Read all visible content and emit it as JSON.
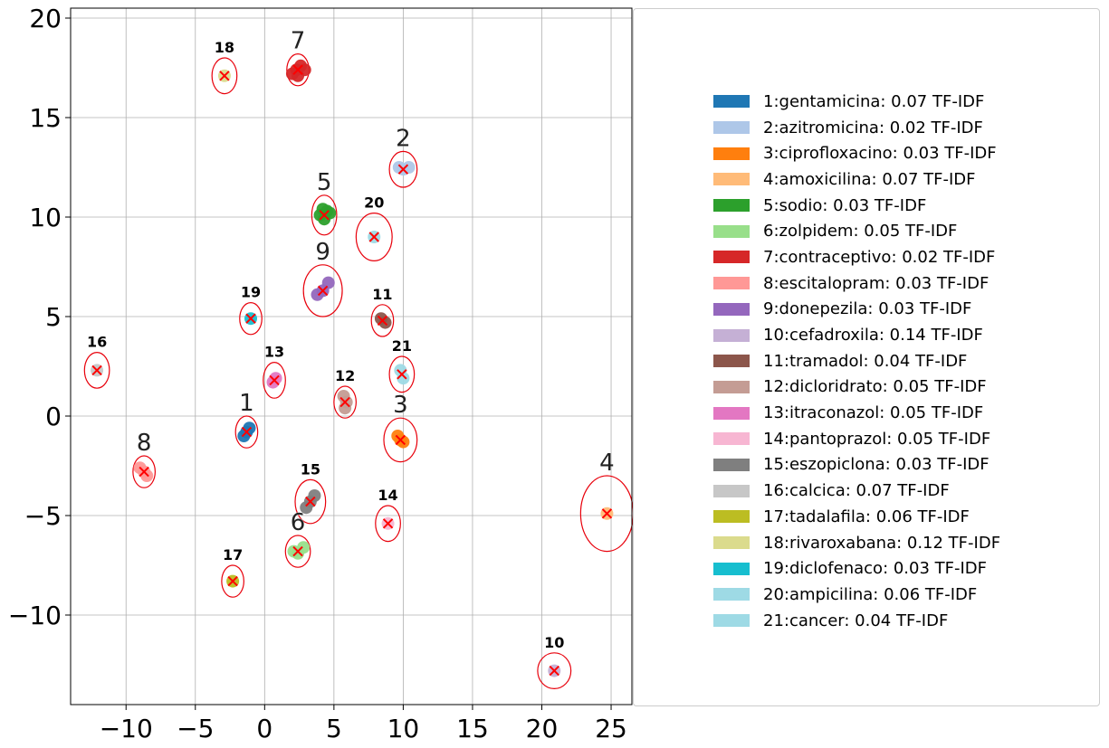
{
  "chart_data": {
    "type": "scatter",
    "xlim": [
      -14,
      26.5
    ],
    "ylim": [
      -14.5,
      20.5
    ],
    "xticks": [
      -10,
      -5,
      0,
      5,
      10,
      15,
      20,
      25
    ],
    "yticks": [
      -10,
      -5,
      0,
      5,
      10,
      15,
      20
    ],
    "xtick_labels": [
      "−10",
      "−5",
      "0",
      "5",
      "10",
      "15",
      "20",
      "25"
    ],
    "ytick_labels": [
      "−10",
      "−5",
      "0",
      "5",
      "10",
      "15",
      "20"
    ],
    "grid": true,
    "legend_placement": "right",
    "legend": [
      {
        "label": "1:gentamicina: 0.07 TF-IDF",
        "color": "#1f77b4"
      },
      {
        "label": "2:azitromicina: 0.02 TF-IDF",
        "color": "#aec7e8"
      },
      {
        "label": "3:ciprofloxacino: 0.03 TF-IDF",
        "color": "#ff7f0e"
      },
      {
        "label": "4:amoxicilina: 0.07 TF-IDF",
        "color": "#ffbb78"
      },
      {
        "label": "5:sodio: 0.03 TF-IDF",
        "color": "#2ca02c"
      },
      {
        "label": "6:zolpidem: 0.05 TF-IDF",
        "color": "#98df8a"
      },
      {
        "label": "7:contraceptivo: 0.02 TF-IDF",
        "color": "#d62728"
      },
      {
        "label": "8:escitalopram: 0.03 TF-IDF",
        "color": "#ff9896"
      },
      {
        "label": "9:donepezila: 0.03 TF-IDF",
        "color": "#9467bd"
      },
      {
        "label": "10:cefadroxila: 0.14 TF-IDF",
        "color": "#c5b0d5"
      },
      {
        "label": "11:tramadol: 0.04 TF-IDF",
        "color": "#8c564b"
      },
      {
        "label": "12:dicloridrato: 0.05 TF-IDF",
        "color": "#c49c94"
      },
      {
        "label": "13:itraconazol: 0.05 TF-IDF",
        "color": "#e377c2"
      },
      {
        "label": "14:pantoprazol: 0.05 TF-IDF",
        "color": "#f7b6d2"
      },
      {
        "label": "15:eszopiclona: 0.03 TF-IDF",
        "color": "#7f7f7f"
      },
      {
        "label": "16:calcica: 0.07 TF-IDF",
        "color": "#c7c7c7"
      },
      {
        "label": "17:tadalafila: 0.06 TF-IDF",
        "color": "#bcbd22"
      },
      {
        "label": "18:rivaroxabana: 0.12 TF-IDF",
        "color": "#dbdb8d"
      },
      {
        "label": "19:diclofenaco: 0.03 TF-IDF",
        "color": "#17becf"
      },
      {
        "label": "20:ampicilina: 0.06 TF-IDF",
        "color": "#9edae5"
      },
      {
        "label": "21:cancer: 0.04 TF-IDF",
        "color": "#9edae5"
      }
    ],
    "clusters": [
      {
        "label": "1",
        "big": true,
        "color": "#1f77b4",
        "center": [
          -1.3,
          -0.8
        ],
        "rx": 0.8,
        "ry": 0.8,
        "points": [
          [
            -1.5,
            -1.0
          ],
          [
            -1.3,
            -0.8
          ],
          [
            -1.1,
            -0.6
          ]
        ]
      },
      {
        "label": "2",
        "big": true,
        "color": "#aec7e8",
        "center": [
          10.0,
          12.4
        ],
        "rx": 1.0,
        "ry": 0.9,
        "points": [
          [
            9.7,
            12.5
          ],
          [
            10.0,
            12.4
          ],
          [
            10.4,
            12.5
          ]
        ]
      },
      {
        "label": "3",
        "big": true,
        "color": "#ff7f0e",
        "center": [
          9.8,
          -1.2
        ],
        "rx": 1.2,
        "ry": 1.1,
        "points": [
          [
            9.6,
            -1.0
          ],
          [
            9.8,
            -1.2
          ],
          [
            10.0,
            -1.3
          ]
        ]
      },
      {
        "label": "4",
        "big": true,
        "color": "#ffbb78",
        "center": [
          24.7,
          -4.9
        ],
        "rx": 1.9,
        "ry": 1.9,
        "points": [
          [
            24.7,
            -4.9
          ]
        ]
      },
      {
        "label": "5",
        "big": true,
        "color": "#2ca02c",
        "center": [
          4.3,
          10.1
        ],
        "rx": 0.9,
        "ry": 1.0,
        "points": [
          [
            4.0,
            10.1
          ],
          [
            4.3,
            9.9
          ],
          [
            4.5,
            10.3
          ],
          [
            4.7,
            10.2
          ],
          [
            4.2,
            10.4
          ]
        ]
      },
      {
        "label": "6",
        "big": true,
        "color": "#98df8a",
        "center": [
          2.4,
          -6.8
        ],
        "rx": 0.9,
        "ry": 0.8,
        "points": [
          [
            2.1,
            -6.8
          ],
          [
            2.4,
            -6.9
          ],
          [
            2.8,
            -6.6
          ]
        ]
      },
      {
        "label": "7",
        "big": true,
        "color": "#d62728",
        "center": [
          2.4,
          17.4
        ],
        "rx": 0.8,
        "ry": 0.8,
        "points": [
          [
            2.0,
            17.2
          ],
          [
            2.3,
            17.4
          ],
          [
            2.6,
            17.6
          ],
          [
            2.9,
            17.4
          ],
          [
            2.4,
            17.1
          ]
        ]
      },
      {
        "label": "8",
        "big": true,
        "color": "#ff9896",
        "center": [
          -8.7,
          -2.8
        ],
        "rx": 0.8,
        "ry": 0.8,
        "points": [
          [
            -9.0,
            -2.6
          ],
          [
            -8.7,
            -2.8
          ],
          [
            -8.5,
            -3.0
          ]
        ]
      },
      {
        "label": "9",
        "big": true,
        "color": "#9467bd",
        "center": [
          4.2,
          6.3
        ],
        "rx": 1.4,
        "ry": 1.3,
        "points": [
          [
            3.8,
            6.1
          ],
          [
            4.2,
            6.3
          ],
          [
            4.6,
            6.7
          ]
        ]
      },
      {
        "label": "10",
        "big": false,
        "color": "#c5b0d5",
        "center": [
          20.9,
          -12.8
        ],
        "rx": 1.2,
        "ry": 0.9,
        "points": [
          [
            20.9,
            -12.8
          ]
        ]
      },
      {
        "label": "11",
        "big": false,
        "color": "#8c564b",
        "center": [
          8.5,
          4.8
        ],
        "rx": 0.8,
        "ry": 0.8,
        "points": [
          [
            8.4,
            4.9
          ],
          [
            8.7,
            4.7
          ]
        ]
      },
      {
        "label": "12",
        "big": false,
        "color": "#c49c94",
        "center": [
          5.8,
          0.7
        ],
        "rx": 0.8,
        "ry": 0.8,
        "points": [
          [
            5.7,
            1.0
          ],
          [
            5.9,
            0.7
          ],
          [
            5.8,
            0.4
          ]
        ]
      },
      {
        "label": "13",
        "big": false,
        "color": "#e377c2",
        "center": [
          0.7,
          1.8
        ],
        "rx": 0.8,
        "ry": 0.9,
        "points": [
          [
            0.6,
            1.7
          ],
          [
            0.8,
            1.9
          ]
        ]
      },
      {
        "label": "14",
        "big": false,
        "color": "#f7b6d2",
        "center": [
          8.9,
          -5.4
        ],
        "rx": 0.9,
        "ry": 0.9,
        "points": [
          [
            8.9,
            -5.4
          ]
        ]
      },
      {
        "label": "15",
        "big": false,
        "color": "#7f7f7f",
        "center": [
          3.3,
          -4.3
        ],
        "rx": 1.1,
        "ry": 1.1,
        "points": [
          [
            3.0,
            -4.6
          ],
          [
            3.3,
            -4.3
          ],
          [
            3.6,
            -4.0
          ]
        ]
      },
      {
        "label": "16",
        "big": false,
        "color": "#c7c7c7",
        "center": [
          -12.1,
          2.3
        ],
        "rx": 0.9,
        "ry": 0.9,
        "points": [
          [
            -12.1,
            2.3
          ]
        ]
      },
      {
        "label": "17",
        "big": false,
        "color": "#bcbd22",
        "center": [
          -2.3,
          -8.3
        ],
        "rx": 0.8,
        "ry": 0.8,
        "points": [
          [
            -2.3,
            -8.3
          ]
        ]
      },
      {
        "label": "18",
        "big": false,
        "color": "#dbdb8d",
        "center": [
          -2.9,
          17.1
        ],
        "rx": 0.9,
        "ry": 0.9,
        "points": [
          [
            -2.9,
            17.1
          ]
        ]
      },
      {
        "label": "19",
        "big": false,
        "color": "#17becf",
        "center": [
          -1.0,
          4.9
        ],
        "rx": 0.8,
        "ry": 0.8,
        "points": [
          [
            -1.0,
            4.9
          ]
        ]
      },
      {
        "label": "20",
        "big": false,
        "color": "#9edae5",
        "center": [
          7.9,
          9.0
        ],
        "rx": 1.3,
        "ry": 1.2,
        "points": [
          [
            7.9,
            9.0
          ]
        ]
      },
      {
        "label": "21",
        "big": false,
        "color": "#9edae5",
        "center": [
          9.9,
          2.1
        ],
        "rx": 0.9,
        "ry": 0.9,
        "points": [
          [
            9.8,
            2.3
          ],
          [
            10.0,
            1.9
          ]
        ]
      }
    ]
  }
}
